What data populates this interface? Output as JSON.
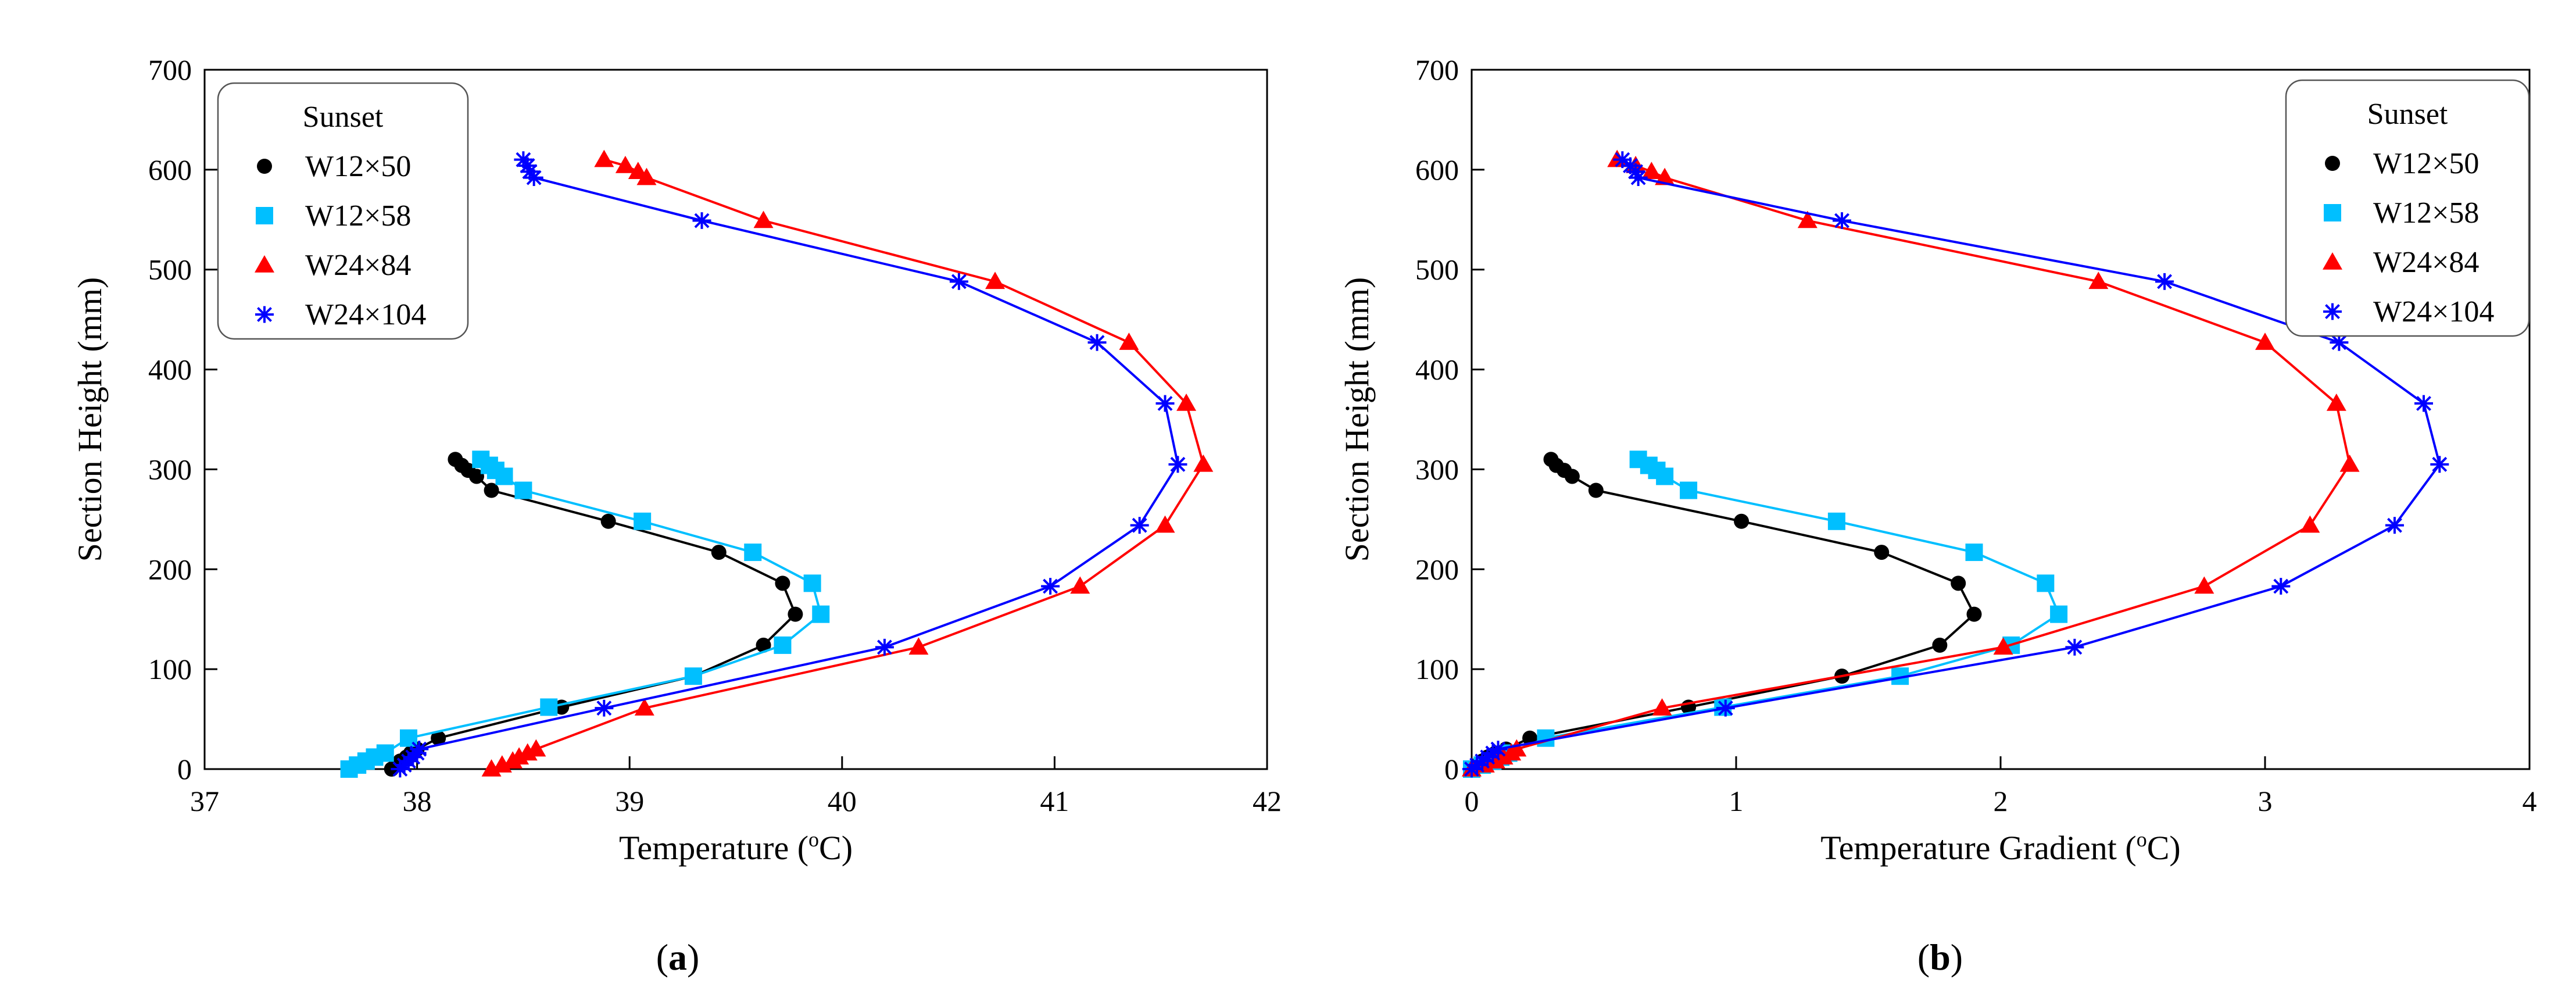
{
  "chart_data": [
    {
      "type": "line",
      "panel_label": "a",
      "xlabel_main": "Temperature (",
      "xlabel_sup": "o",
      "xlabel_end": "C)",
      "ylabel": "Section Height (mm)",
      "xlim": [
        37,
        42
      ],
      "ylim": [
        0,
        700
      ],
      "xticks": [
        37,
        38,
        39,
        40,
        41,
        42
      ],
      "yticks": [
        0,
        100,
        200,
        300,
        400,
        500,
        600,
        700
      ],
      "legend_title": "Sunset",
      "legend_position": "top-left",
      "series": [
        {
          "name": "W12×50",
          "color": "#000000",
          "marker": "circle",
          "points": [
            [
              37.88,
              0
            ],
            [
              37.9,
              4
            ],
            [
              37.92,
              8
            ],
            [
              37.95,
              12
            ],
            [
              37.97,
              16
            ],
            [
              38.0,
              20
            ],
            [
              38.1,
              31
            ],
            [
              38.68,
              62
            ],
            [
              39.3,
              93
            ],
            [
              39.63,
              124
            ],
            [
              39.78,
              155
            ],
            [
              39.72,
              186
            ],
            [
              39.42,
              217
            ],
            [
              38.9,
              248
            ],
            [
              38.35,
              279
            ],
            [
              38.28,
              293
            ],
            [
              38.24,
              299
            ],
            [
              38.21,
              304
            ],
            [
              38.18,
              310
            ]
          ]
        },
        {
          "name": "W12×58",
          "color": "#00BFFF",
          "marker": "square",
          "points": [
            [
              37.68,
              0
            ],
            [
              37.72,
              4
            ],
            [
              37.76,
              8
            ],
            [
              37.8,
              12
            ],
            [
              37.85,
              16
            ],
            [
              37.96,
              31
            ],
            [
              38.62,
              62
            ],
            [
              39.3,
              93
            ],
            [
              39.72,
              124
            ],
            [
              39.9,
              155
            ],
            [
              39.86,
              186
            ],
            [
              39.58,
              217
            ],
            [
              39.06,
              248
            ],
            [
              38.5,
              279
            ],
            [
              38.41,
              293
            ],
            [
              38.37,
              299
            ],
            [
              38.34,
              304
            ],
            [
              38.3,
              310
            ]
          ]
        },
        {
          "name": "W24×84",
          "color": "#FF0000",
          "marker": "triangle",
          "points": [
            [
              38.35,
              0
            ],
            [
              38.4,
              4
            ],
            [
              38.45,
              8
            ],
            [
              38.48,
              12
            ],
            [
              38.52,
              16
            ],
            [
              38.56,
              20
            ],
            [
              39.07,
              61
            ],
            [
              40.36,
              122
            ],
            [
              41.12,
              183
            ],
            [
              41.52,
              244
            ],
            [
              41.7,
              305
            ],
            [
              41.62,
              366
            ],
            [
              41.35,
              427
            ],
            [
              40.72,
              488
            ],
            [
              39.63,
              549
            ],
            [
              39.08,
              592
            ],
            [
              39.04,
              598
            ],
            [
              38.98,
              604
            ],
            [
              38.88,
              610
            ]
          ]
        },
        {
          "name": "W24×104",
          "color": "#0000FF",
          "marker": "star",
          "points": [
            [
              37.92,
              0
            ],
            [
              37.94,
              4
            ],
            [
              37.96,
              8
            ],
            [
              37.98,
              12
            ],
            [
              38.0,
              16
            ],
            [
              38.01,
              20
            ],
            [
              38.88,
              61
            ],
            [
              40.2,
              122
            ],
            [
              40.98,
              183
            ],
            [
              41.4,
              244
            ],
            [
              41.58,
              305
            ],
            [
              41.52,
              366
            ],
            [
              41.2,
              427
            ],
            [
              40.55,
              488
            ],
            [
              39.34,
              549
            ],
            [
              38.55,
              592
            ],
            [
              38.53,
              598
            ],
            [
              38.52,
              604
            ],
            [
              38.5,
              610
            ]
          ]
        }
      ]
    },
    {
      "type": "line",
      "panel_label": "b",
      "xlabel_main": "Temperature Gradient (",
      "xlabel_sup": "o",
      "xlabel_end": "C)",
      "ylabel": "Section Height (mm)",
      "xlim": [
        0,
        4
      ],
      "ylim": [
        0,
        700
      ],
      "xticks": [
        0,
        1,
        2,
        3,
        4
      ],
      "yticks": [
        0,
        100,
        200,
        300,
        400,
        500,
        600,
        700
      ],
      "legend_title": "Sunset",
      "legend_position": "top-right",
      "series": [
        {
          "name": "W12×50",
          "color": "#000000",
          "marker": "circle",
          "points": [
            [
              0,
              0
            ],
            [
              0.02,
              4
            ],
            [
              0.04,
              8
            ],
            [
              0.06,
              12
            ],
            [
              0.09,
              16
            ],
            [
              0.13,
              20
            ],
            [
              0.22,
              31
            ],
            [
              0.82,
              62
            ],
            [
              1.4,
              93
            ],
            [
              1.77,
              124
            ],
            [
              1.9,
              155
            ],
            [
              1.84,
              186
            ],
            [
              1.55,
              217
            ],
            [
              1.02,
              248
            ],
            [
              0.47,
              279
            ],
            [
              0.38,
              293
            ],
            [
              0.35,
              299
            ],
            [
              0.32,
              304
            ],
            [
              0.3,
              310
            ]
          ]
        },
        {
          "name": "W12×58",
          "color": "#00BFFF",
          "marker": "square",
          "points": [
            [
              0,
              0
            ],
            [
              0.04,
              4
            ],
            [
              0.08,
              8
            ],
            [
              0.11,
              12
            ],
            [
              0.14,
              16
            ],
            [
              0.28,
              31
            ],
            [
              0.95,
              62
            ],
            [
              1.62,
              93
            ],
            [
              2.04,
              124
            ],
            [
              2.22,
              155
            ],
            [
              2.17,
              186
            ],
            [
              1.9,
              217
            ],
            [
              1.38,
              248
            ],
            [
              0.82,
              279
            ],
            [
              0.73,
              293
            ],
            [
              0.7,
              299
            ],
            [
              0.67,
              304
            ],
            [
              0.63,
              310
            ]
          ]
        },
        {
          "name": "W24×84",
          "color": "#FF0000",
          "marker": "triangle",
          "points": [
            [
              0,
              0
            ],
            [
              0.05,
              4
            ],
            [
              0.09,
              8
            ],
            [
              0.12,
              12
            ],
            [
              0.15,
              16
            ],
            [
              0.17,
              20
            ],
            [
              0.72,
              61
            ],
            [
              2.01,
              122
            ],
            [
              2.77,
              183
            ],
            [
              3.17,
              244
            ],
            [
              3.32,
              305
            ],
            [
              3.27,
              366
            ],
            [
              3.0,
              427
            ],
            [
              2.37,
              488
            ],
            [
              1.27,
              549
            ],
            [
              0.73,
              592
            ],
            [
              0.68,
              598
            ],
            [
              0.62,
              604
            ],
            [
              0.55,
              610
            ]
          ]
        },
        {
          "name": "W24×104",
          "color": "#0000FF",
          "marker": "star",
          "points": [
            [
              0,
              0
            ],
            [
              0.02,
              4
            ],
            [
              0.04,
              8
            ],
            [
              0.06,
              12
            ],
            [
              0.08,
              16
            ],
            [
              0.1,
              20
            ],
            [
              0.96,
              61
            ],
            [
              2.28,
              122
            ],
            [
              3.06,
              183
            ],
            [
              3.49,
              244
            ],
            [
              3.66,
              305
            ],
            [
              3.6,
              366
            ],
            [
              3.28,
              427
            ],
            [
              2.62,
              488
            ],
            [
              1.4,
              549
            ],
            [
              0.63,
              592
            ],
            [
              0.62,
              598
            ],
            [
              0.6,
              604
            ],
            [
              0.57,
              610
            ]
          ]
        }
      ]
    }
  ]
}
